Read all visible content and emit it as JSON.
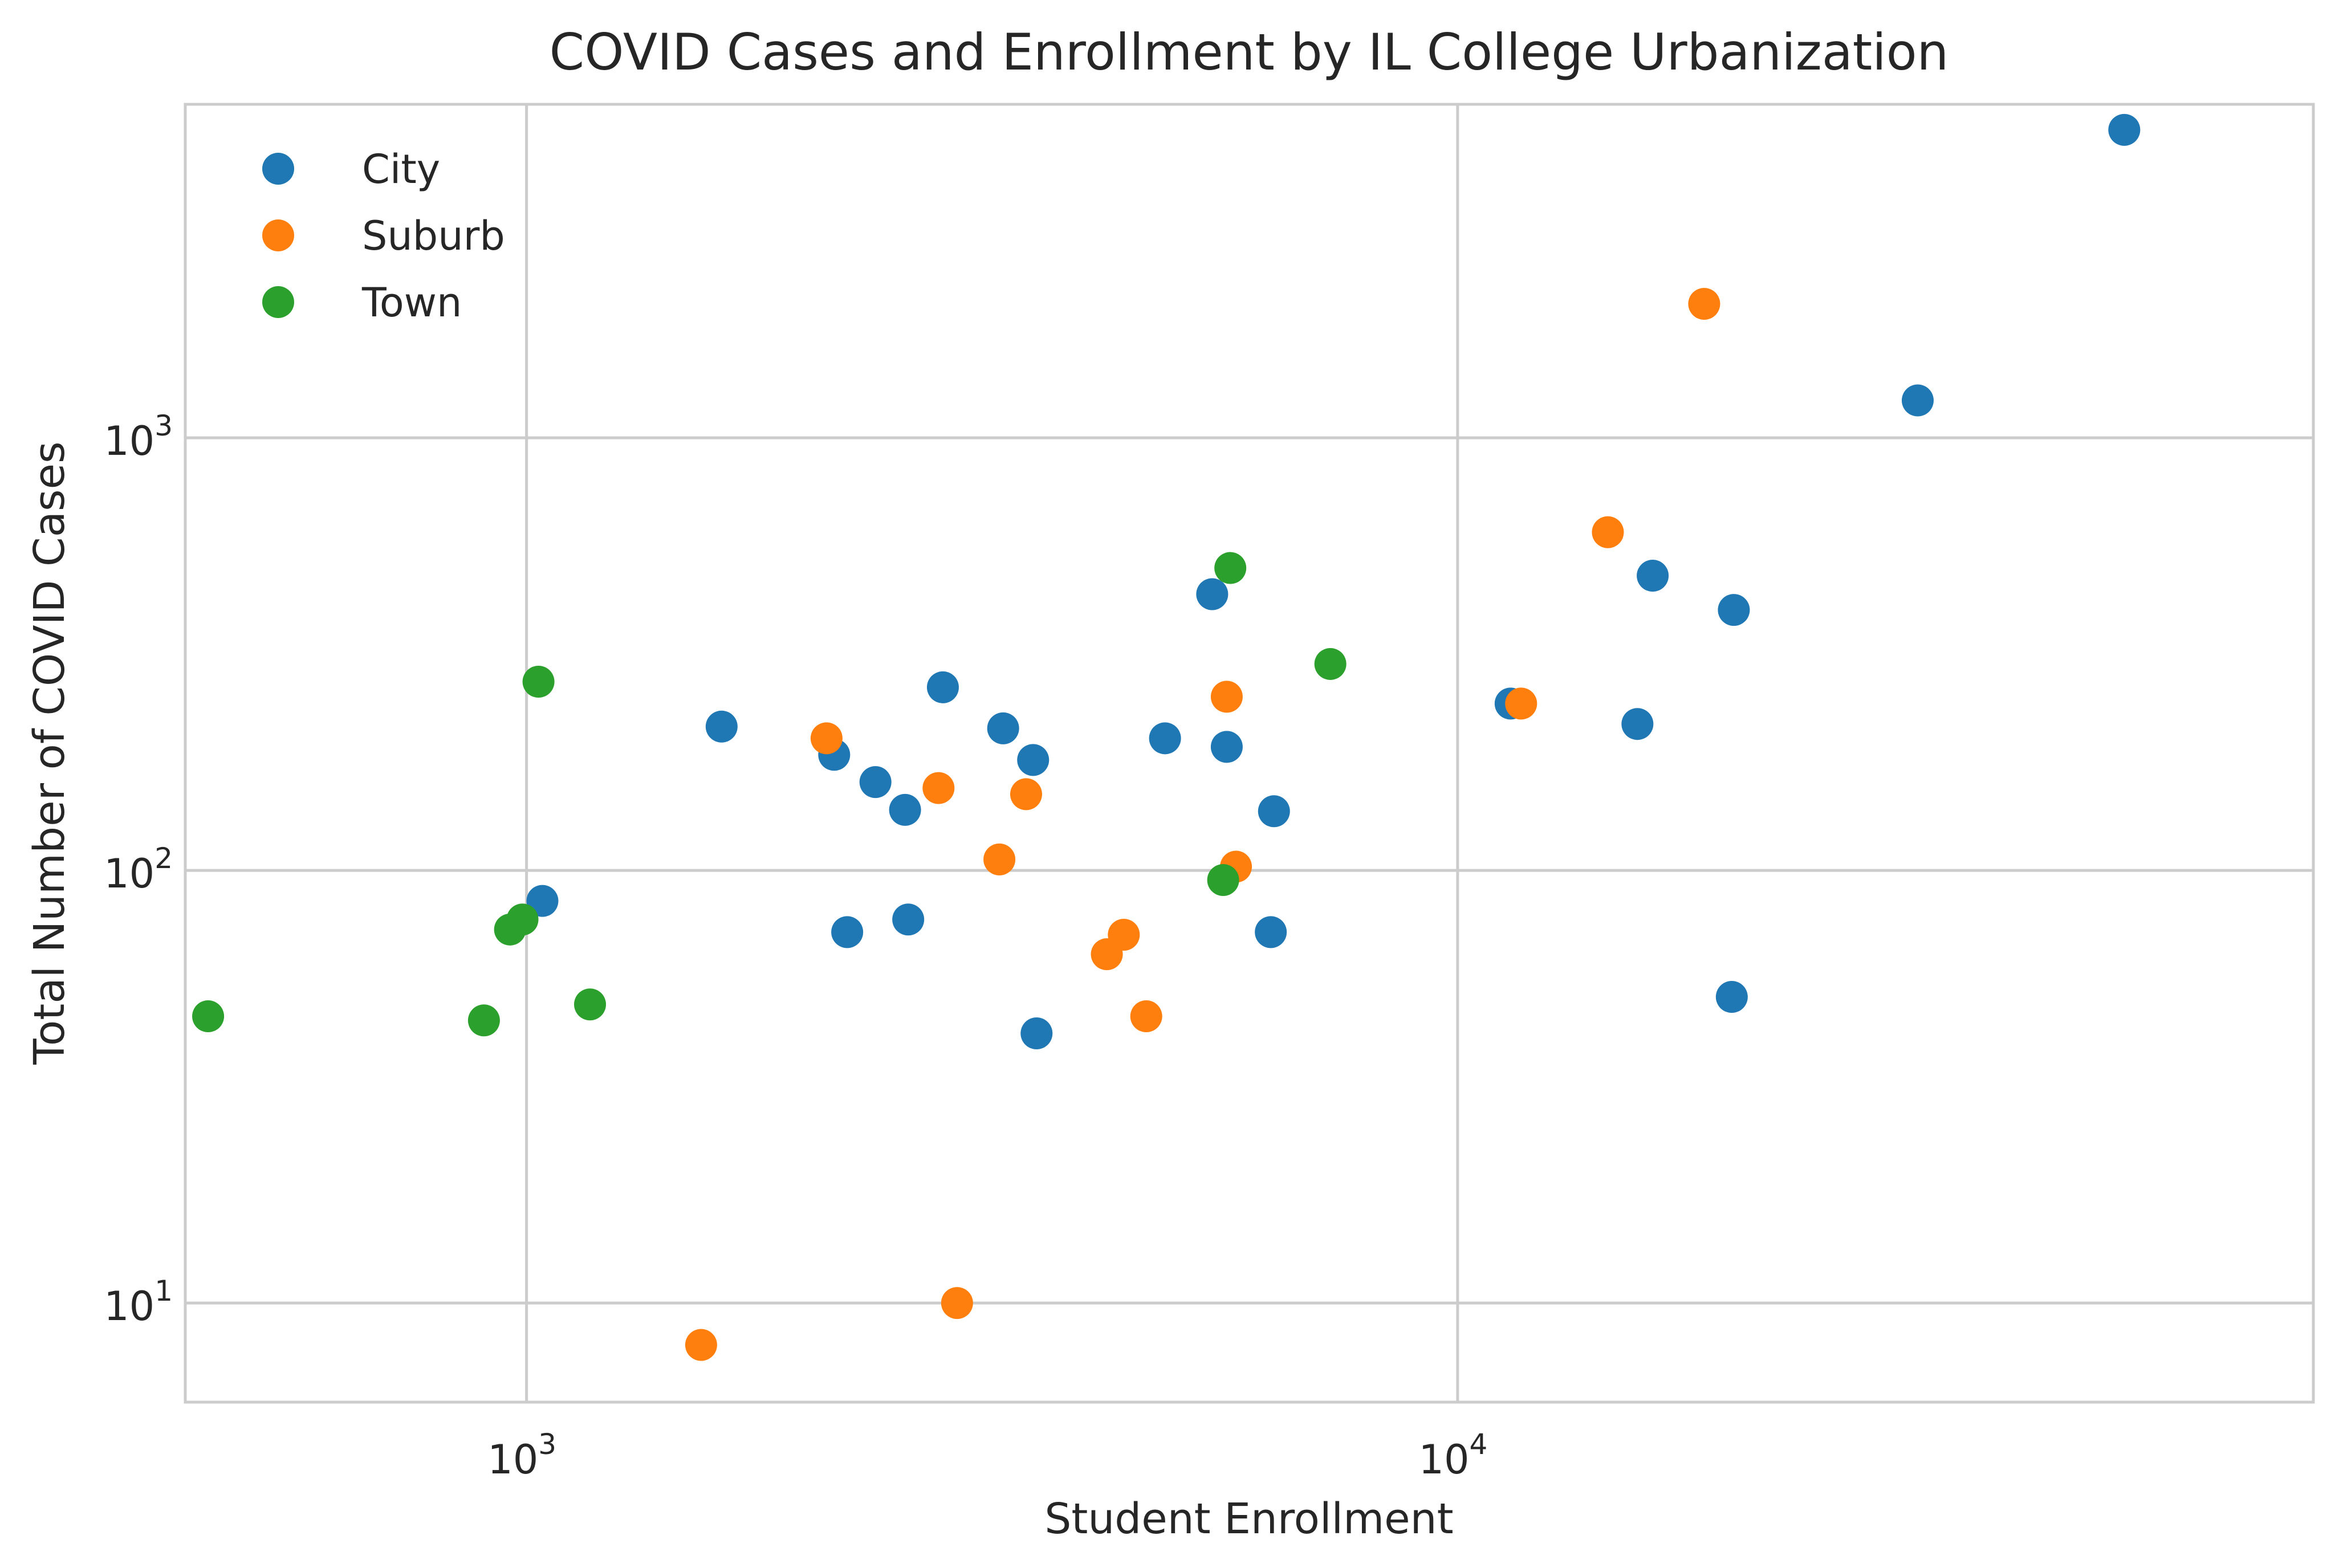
{
  "chart_data": {
    "type": "scatter",
    "title": "COVID Cases and Enrollment by IL College Urbanization",
    "xlabel": "Student Enrollment",
    "ylabel": "Total Number of COVID Cases",
    "xscale": "log",
    "yscale": "log",
    "xlim": [
      430,
      83000
    ],
    "ylim": [
      5.9,
      5900
    ],
    "x_ticks": [
      {
        "value": 1000,
        "base": "10",
        "exp": "3"
      },
      {
        "value": 10000,
        "base": "10",
        "exp": "4"
      }
    ],
    "y_ticks": [
      {
        "value": 10,
        "base": "10",
        "exp": "1"
      },
      {
        "value": 100,
        "base": "10",
        "exp": "2"
      },
      {
        "value": 1000,
        "base": "10",
        "exp": "3"
      }
    ],
    "grid": true,
    "legend_position": "top-left",
    "series": [
      {
        "name": "City",
        "color": "#1f77b4",
        "points": [
          [
            1620,
            215
          ],
          [
            1040,
            85
          ],
          [
            2140,
            185
          ],
          [
            2210,
            72
          ],
          [
            2370,
            160
          ],
          [
            2550,
            138
          ],
          [
            2570,
            77
          ],
          [
            2800,
            265
          ],
          [
            3250,
            213
          ],
          [
            3500,
            180
          ],
          [
            3530,
            42
          ],
          [
            4850,
            202
          ],
          [
            5450,
            435
          ],
          [
            5650,
            193
          ],
          [
            6350,
            137
          ],
          [
            6300,
            72
          ],
          [
            11400,
            243
          ],
          [
            15600,
            218
          ],
          [
            16200,
            480
          ],
          [
            19800,
            400
          ],
          [
            19700,
            51
          ],
          [
            31200,
            1220
          ],
          [
            52000,
            5150
          ]
        ]
      },
      {
        "name": "Suburb",
        "color": "#ff7f0e",
        "points": [
          [
            1540,
            8
          ],
          [
            2100,
            202
          ],
          [
            2770,
            155
          ],
          [
            2900,
            10
          ],
          [
            3220,
            106
          ],
          [
            3440,
            150
          ],
          [
            4200,
            64
          ],
          [
            4380,
            71
          ],
          [
            4630,
            46
          ],
          [
            5650,
            252
          ],
          [
            5780,
            102
          ],
          [
            11700,
            243
          ],
          [
            14500,
            605
          ],
          [
            18400,
            2040
          ]
        ]
      },
      {
        "name": "Town",
        "color": "#2ca02c",
        "points": [
          [
            455,
            46
          ],
          [
            900,
            45
          ],
          [
            960,
            73
          ],
          [
            990,
            77
          ],
          [
            1030,
            273
          ],
          [
            1170,
            49
          ],
          [
            5600,
            95
          ],
          [
            5700,
            500
          ],
          [
            7300,
            300
          ]
        ]
      }
    ]
  }
}
